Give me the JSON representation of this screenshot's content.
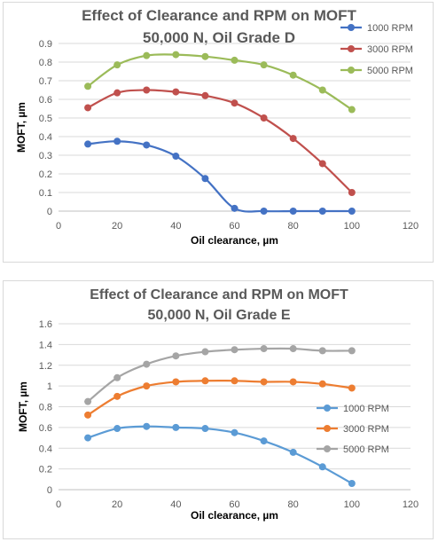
{
  "chart_data": [
    {
      "type": "scatter",
      "title": "Effect of Clearance and RPM on MOFT",
      "subtitle": "50,000 N, Oil Grade D",
      "xlabel": "Oil clearance, µm",
      "ylabel": "MOFT, µm",
      "xlim": [
        0,
        120
      ],
      "ylim": [
        0,
        0.9
      ],
      "xticks": [
        0,
        20,
        40,
        60,
        80,
        100,
        120
      ],
      "yticks": [
        0,
        0.1,
        0.2,
        0.3,
        0.4,
        0.5,
        0.6,
        0.7,
        0.8,
        0.9
      ],
      "x": [
        10,
        20,
        30,
        40,
        50,
        60,
        70,
        80,
        90,
        100
      ],
      "series": [
        {
          "name": "1000 RPM",
          "color": "#4472c4",
          "values": [
            0.36,
            0.375,
            0.355,
            0.295,
            0.175,
            0.015,
            0.0,
            0.0,
            0.0,
            0.0
          ]
        },
        {
          "name": "3000 RPM",
          "color": "#c0504d",
          "values": [
            0.555,
            0.635,
            0.65,
            0.64,
            0.62,
            0.58,
            0.5,
            0.39,
            0.255,
            0.1
          ]
        },
        {
          "name": "5000 RPM",
          "color": "#9bbb59",
          "values": [
            0.67,
            0.785,
            0.835,
            0.84,
            0.83,
            0.81,
            0.785,
            0.73,
            0.65,
            0.545
          ]
        }
      ],
      "grid": "horizontal",
      "legend": "right"
    },
    {
      "type": "scatter",
      "title": "Effect of Clearance and RPM on MOFT",
      "subtitle": "50,000 N, Oil Grade E",
      "xlabel": "Oil clearance, µm",
      "ylabel": "MOFT, µm",
      "xlim": [
        0,
        120
      ],
      "ylim": [
        0,
        1.6
      ],
      "xticks": [
        0,
        20,
        40,
        60,
        80,
        100,
        120
      ],
      "yticks": [
        0,
        0.2,
        0.4,
        0.6,
        0.8,
        1,
        1.2,
        1.4,
        1.6
      ],
      "x": [
        10,
        20,
        30,
        40,
        50,
        60,
        70,
        80,
        90,
        100
      ],
      "series": [
        {
          "name": "1000 RPM",
          "color": "#5b9bd5",
          "values": [
            0.5,
            0.59,
            0.61,
            0.6,
            0.59,
            0.55,
            0.47,
            0.36,
            0.22,
            0.06
          ]
        },
        {
          "name": "3000 RPM",
          "color": "#ed7d31",
          "values": [
            0.72,
            0.9,
            1.0,
            1.04,
            1.05,
            1.05,
            1.04,
            1.04,
            1.02,
            0.98
          ]
        },
        {
          "name": "5000 RPM",
          "color": "#a5a5a5",
          "values": [
            0.85,
            1.08,
            1.21,
            1.29,
            1.33,
            1.35,
            1.36,
            1.36,
            1.34,
            1.34
          ]
        }
      ],
      "grid": "horizontal",
      "legend": "right"
    }
  ]
}
